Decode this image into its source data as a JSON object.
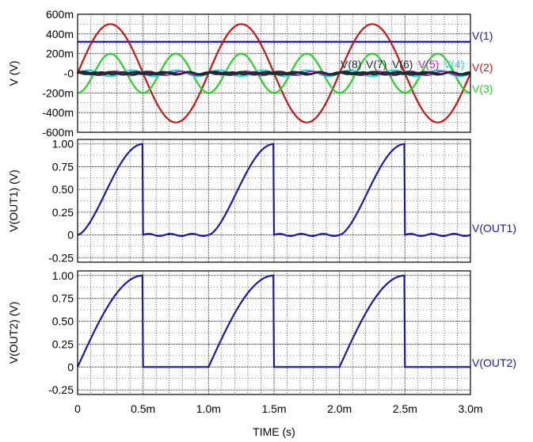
{
  "xlabel": "TIME  (s)",
  "x_ticks": [
    "0",
    "0.5m",
    "1.0m",
    "1.5m",
    "2.0m",
    "2.5m",
    "3.0m"
  ],
  "colors": {
    "blue": "#1a1aa8",
    "red": "#c81414",
    "green": "#28d028",
    "cyan": "#28d8d8",
    "magenta": "#b428b4",
    "dark": "#1e2a30",
    "grid": "#000000"
  },
  "chart_data": [
    {
      "type": "line",
      "ylabel": "V  (V)",
      "xlim": [
        0,
        0.003
      ],
      "ylim": [
        -0.6,
        0.6
      ],
      "y_ticks": [
        "-600m",
        "-400m",
        "-200m",
        "-0",
        "200m",
        "400m",
        "600m"
      ],
      "grid": true,
      "series": [
        {
          "name": "V(1)",
          "color": "blue",
          "kind": "const",
          "value": 0.32
        },
        {
          "name": "V(2)",
          "color": "red",
          "kind": "sine",
          "amp": 0.5,
          "freq": 1000,
          "phase": 0
        },
        {
          "name": "V(3)",
          "color": "green",
          "kind": "sine",
          "amp": 0.2,
          "freq": 2000,
          "phase": -1.5708
        },
        {
          "name": "V(4)",
          "color": "cyan",
          "kind": "sine",
          "amp": 0.03,
          "freq": 3000,
          "phase": 0
        },
        {
          "name": "V(5)",
          "color": "magenta",
          "kind": "sine",
          "amp": 0.02,
          "freq": 4000,
          "phase": 0.6
        },
        {
          "name": "V(6)",
          "color": "dark",
          "kind": "sine",
          "amp": 0.015,
          "freq": 5000,
          "phase": 0
        },
        {
          "name": "V(7)",
          "color": "dark",
          "kind": "sine",
          "amp": 0.012,
          "freq": 6000,
          "phase": 1.0
        },
        {
          "name": "V(8)",
          "color": "dark",
          "kind": "sine",
          "amp": 0.01,
          "freq": 7000,
          "phase": 2.0
        }
      ],
      "legend": [
        {
          "text": "V(1)",
          "color": "blue"
        },
        {
          "text": "V(2)",
          "color": "red"
        },
        {
          "text": "V(3)",
          "color": "green"
        }
      ],
      "inline_labels": [
        {
          "text": "V(8)",
          "color": "dark"
        },
        {
          "text": "V(7)",
          "color": "dark"
        },
        {
          "text": "V(6)",
          "color": "dark"
        },
        {
          "text": "V(5)",
          "color": "magenta"
        },
        {
          "text": "V(4)",
          "color": "cyan"
        }
      ]
    },
    {
      "type": "line",
      "ylabel": "V(OUT1)  (V)",
      "xlim": [
        0,
        0.003
      ],
      "ylim": [
        -0.3,
        1.05
      ],
      "y_ticks": [
        "-0.25",
        "0",
        "0.25",
        "0.50",
        "0.75",
        "1.00"
      ],
      "grid": true,
      "series": [
        {
          "name": "V(OUT1)",
          "color": "blue",
          "kind": "out1",
          "peak": 1.0
        }
      ],
      "legend": [
        {
          "text": "V(OUT1)",
          "color": "blue"
        }
      ]
    },
    {
      "type": "line",
      "ylabel": "V(OUT2)  (V)",
      "xlim": [
        0,
        0.003
      ],
      "ylim": [
        -0.3,
        1.05
      ],
      "y_ticks": [
        "-0.25",
        "0",
        "0.25",
        "0.50",
        "0.75",
        "1.00"
      ],
      "grid": true,
      "series": [
        {
          "name": "V(OUT2)",
          "color": "blue",
          "kind": "out2",
          "peak": 1.0
        }
      ],
      "legend": [
        {
          "text": "V(OUT2)",
          "color": "blue"
        }
      ]
    }
  ]
}
